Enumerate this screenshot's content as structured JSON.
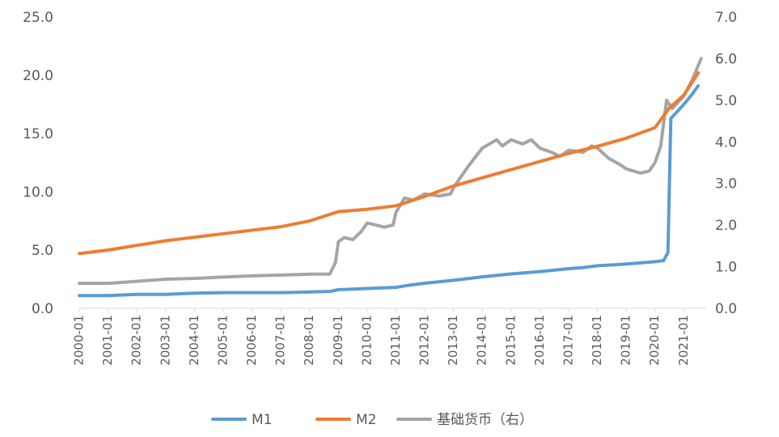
{
  "chart_data": {
    "type": "line",
    "x_ticks": [
      "2000-01",
      "2001-01",
      "2002-01",
      "2003-01",
      "2004-01",
      "2005-01",
      "2006-01",
      "2007-01",
      "2008-01",
      "2009-01",
      "2010-01",
      "2011-01",
      "2012-01",
      "2013-01",
      "2014-01",
      "2015-01",
      "2016-01",
      "2017-01",
      "2018-01",
      "2019-01",
      "2020-01",
      "2021-01"
    ],
    "y_left": {
      "ticks": [
        "0.0",
        "5.0",
        "10.0",
        "15.0",
        "20.0",
        "25.0"
      ],
      "min": 0,
      "max": 25
    },
    "y_right": {
      "ticks": [
        "0.0",
        "1.0",
        "2.0",
        "3.0",
        "4.0",
        "5.0",
        "6.0",
        "7.0"
      ],
      "min": 0,
      "max": 7
    },
    "grid": false,
    "legend_position": "bottom",
    "series": [
      {
        "name": "M1",
        "axis": "left",
        "color": "#5B9BD5",
        "points": [
          [
            2000.0,
            1.1
          ],
          [
            2001.0,
            1.1
          ],
          [
            2002.0,
            1.2
          ],
          [
            2003.0,
            1.2
          ],
          [
            2004.0,
            1.3
          ],
          [
            2005.0,
            1.35
          ],
          [
            2006.0,
            1.35
          ],
          [
            2007.0,
            1.35
          ],
          [
            2008.0,
            1.4
          ],
          [
            2008.7,
            1.45
          ],
          [
            2009.0,
            1.6
          ],
          [
            2010.0,
            1.7
          ],
          [
            2011.0,
            1.8
          ],
          [
            2011.5,
            2.0
          ],
          [
            2012.0,
            2.15
          ],
          [
            2013.0,
            2.4
          ],
          [
            2014.0,
            2.7
          ],
          [
            2015.0,
            2.95
          ],
          [
            2016.0,
            3.15
          ],
          [
            2017.0,
            3.4
          ],
          [
            2017.5,
            3.5
          ],
          [
            2018.0,
            3.65
          ],
          [
            2019.0,
            3.8
          ],
          [
            2020.0,
            4.0
          ],
          [
            2020.3,
            4.1
          ],
          [
            2020.45,
            4.8
          ],
          [
            2020.55,
            16.3
          ],
          [
            2021.0,
            17.5
          ],
          [
            2021.3,
            18.4
          ],
          [
            2021.5,
            19.1
          ]
        ]
      },
      {
        "name": "M2",
        "axis": "left",
        "color": "#ED7D31",
        "points": [
          [
            2000.0,
            4.7
          ],
          [
            2001.0,
            5.0
          ],
          [
            2002.0,
            5.4
          ],
          [
            2003.0,
            5.8
          ],
          [
            2004.0,
            6.1
          ],
          [
            2005.0,
            6.4
          ],
          [
            2006.0,
            6.7
          ],
          [
            2007.0,
            7.0
          ],
          [
            2008.0,
            7.5
          ],
          [
            2009.0,
            8.3
          ],
          [
            2010.0,
            8.5
          ],
          [
            2011.0,
            8.8
          ],
          [
            2012.0,
            9.6
          ],
          [
            2013.0,
            10.5
          ],
          [
            2014.0,
            11.2
          ],
          [
            2015.0,
            11.9
          ],
          [
            2016.0,
            12.6
          ],
          [
            2017.0,
            13.3
          ],
          [
            2018.0,
            13.9
          ],
          [
            2019.0,
            14.6
          ],
          [
            2020.0,
            15.5
          ],
          [
            2020.5,
            17.2
          ],
          [
            2021.0,
            18.3
          ],
          [
            2021.5,
            20.2
          ]
        ]
      },
      {
        "name": "基础货币（右）",
        "axis": "right",
        "color": "#A5A5A5",
        "points": [
          [
            2000.0,
            0.6
          ],
          [
            2001.0,
            0.6
          ],
          [
            2002.0,
            0.65
          ],
          [
            2003.0,
            0.7
          ],
          [
            2004.0,
            0.72
          ],
          [
            2005.0,
            0.75
          ],
          [
            2006.0,
            0.78
          ],
          [
            2007.0,
            0.8
          ],
          [
            2008.0,
            0.82
          ],
          [
            2008.7,
            0.82
          ],
          [
            2008.9,
            1.1
          ],
          [
            2009.0,
            1.6
          ],
          [
            2009.2,
            1.7
          ],
          [
            2009.5,
            1.65
          ],
          [
            2009.8,
            1.85
          ],
          [
            2010.0,
            2.05
          ],
          [
            2010.3,
            2.0
          ],
          [
            2010.6,
            1.95
          ],
          [
            2010.9,
            2.0
          ],
          [
            2011.0,
            2.3
          ],
          [
            2011.3,
            2.65
          ],
          [
            2011.6,
            2.6
          ],
          [
            2012.0,
            2.75
          ],
          [
            2012.5,
            2.7
          ],
          [
            2012.9,
            2.75
          ],
          [
            2013.0,
            2.9
          ],
          [
            2013.5,
            3.4
          ],
          [
            2014.0,
            3.85
          ],
          [
            2014.5,
            4.05
          ],
          [
            2014.7,
            3.9
          ],
          [
            2015.0,
            4.05
          ],
          [
            2015.4,
            3.95
          ],
          [
            2015.7,
            4.05
          ],
          [
            2016.0,
            3.85
          ],
          [
            2016.4,
            3.75
          ],
          [
            2016.7,
            3.65
          ],
          [
            2017.0,
            3.8
          ],
          [
            2017.5,
            3.75
          ],
          [
            2017.8,
            3.9
          ],
          [
            2018.0,
            3.85
          ],
          [
            2018.4,
            3.6
          ],
          [
            2018.8,
            3.45
          ],
          [
            2019.0,
            3.35
          ],
          [
            2019.5,
            3.25
          ],
          [
            2019.8,
            3.3
          ],
          [
            2020.0,
            3.5
          ],
          [
            2020.2,
            3.9
          ],
          [
            2020.4,
            5.0
          ],
          [
            2020.6,
            4.8
          ],
          [
            2021.0,
            5.1
          ],
          [
            2021.3,
            5.5
          ],
          [
            2021.6,
            6.0
          ]
        ]
      }
    ]
  }
}
